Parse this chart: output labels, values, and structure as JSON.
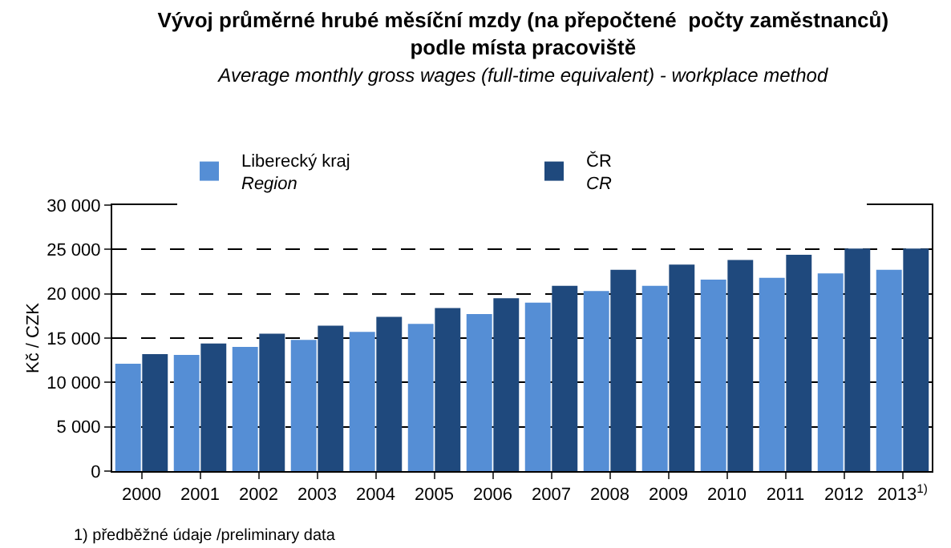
{
  "chart_data": {
    "type": "bar",
    "title": "Vývoj průměrné hrubé měsíční mzdy (na přepočtené  počty zaměstnanců)\npodle místa pracoviště",
    "subtitle": "Average monthly gross wages (full-time equivalent) - workplace method",
    "ylabel": "Kč / CZK",
    "categories": [
      "2000",
      "2001",
      "2002",
      "2003",
      "2004",
      "2005",
      "2006",
      "2007",
      "2008",
      "2009",
      "2010",
      "2011",
      "2012",
      "2013$^{1)}$"
    ],
    "series": [
      {
        "name": "Liberecký kraj\nRegion",
        "color": "#558ed5",
        "values": [
          12100,
          13100,
          14000,
          14800,
          15700,
          16600,
          17700,
          19000,
          20300,
          20900,
          21600,
          21800,
          22300,
          22700
        ]
      },
      {
        "name": "ČR\nCR",
        "color": "#1f497d",
        "values": [
          13200,
          14400,
          15500,
          16400,
          17400,
          18400,
          19500,
          20900,
          22700,
          23300,
          23800,
          24400,
          25100,
          25100
        ]
      }
    ],
    "ylim": [
      0,
      30000
    ],
    "yticks": [
      0,
      {
        "value": 5000,
        "label": "5 000"
      },
      {
        "value": 10000,
        "label": "10 000"
      },
      {
        "value": 15000,
        "label": "15 000"
      },
      {
        "value": 20000,
        "label": "20 000"
      },
      {
        "value": 25000,
        "label": "25 000"
      },
      {
        "value": 30000,
        "label": "30 000"
      }
    ],
    "grid": "y",
    "line_style": "dashed",
    "legend": "top",
    "annotations": [
      "1) předběžné údaje /preliminary data"
    ]
  }
}
